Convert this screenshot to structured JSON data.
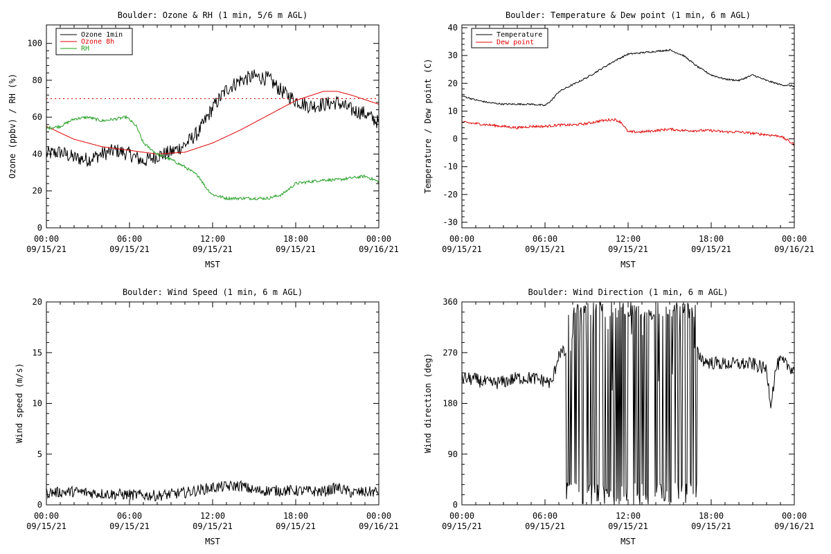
{
  "colors": {
    "black": "#000000",
    "red": "#e00000",
    "green": "#22a022"
  },
  "x_axis": {
    "ticks": [
      "00:00",
      "06:00",
      "12:00",
      "18:00",
      "00:00"
    ],
    "dates": [
      "09/15/21",
      "09/15/21",
      "09/15/21",
      "09/15/21",
      "09/16/21"
    ],
    "label": "MST"
  },
  "chart_data": [
    {
      "type": "line",
      "title": "Boulder: Ozone & RH (1 min, 5/6 m AGL)",
      "ylabel": "Ozone (ppbv) / RH (%)",
      "ylim": [
        0,
        110
      ],
      "yticks": [
        "0",
        "20",
        "40",
        "60",
        "80",
        "100"
      ],
      "x_hours": [
        0,
        24
      ],
      "legend": "top-left",
      "series": [
        {
          "name": "Ozone 1min",
          "color": "black",
          "noise": 4,
          "x": [
            0,
            1,
            2,
            3,
            4,
            5,
            6,
            6.5,
            7,
            8,
            9,
            10,
            11,
            12,
            13,
            14,
            15,
            16,
            17,
            18,
            19,
            20,
            21,
            22,
            23,
            24
          ],
          "y": [
            40,
            41,
            38,
            37,
            40,
            42,
            40,
            38,
            36,
            39,
            41,
            45,
            52,
            65,
            75,
            80,
            82,
            81,
            74,
            69,
            66,
            67,
            68,
            64,
            62,
            57
          ]
        },
        {
          "name": "Ozone 8h",
          "color": "red",
          "noise": 0,
          "x": [
            0,
            2,
            4,
            6,
            8,
            10,
            12,
            14,
            16,
            18,
            20,
            21,
            22,
            24
          ],
          "y": [
            55,
            48,
            44,
            42,
            40,
            41,
            46,
            53,
            61,
            69,
            74,
            74,
            72,
            67
          ]
        },
        {
          "name": "RH",
          "color": "green",
          "noise": 0.8,
          "x": [
            0,
            1,
            2,
            3,
            4,
            5,
            5.8,
            6.5,
            7,
            8,
            9,
            10,
            11,
            11.5,
            12,
            13,
            14,
            15,
            16,
            17,
            18,
            19,
            20,
            21,
            22,
            23,
            24
          ],
          "y": [
            54,
            55,
            59,
            60,
            58,
            59,
            60,
            55,
            46,
            40,
            37,
            33,
            28,
            22,
            18,
            16,
            16,
            16,
            16,
            18,
            24,
            25,
            26,
            26,
            27,
            28,
            25
          ]
        },
        {
          "name": "",
          "color": "red",
          "noise": 0,
          "dotted": true,
          "x": [
            0,
            24
          ],
          "y": [
            70,
            70
          ]
        }
      ]
    },
    {
      "type": "line",
      "title": "Boulder: Temperature & Dew point (1 min, 6 m AGL)",
      "ylabel": "Temperature / Dew point (C)",
      "ylim": [
        -32,
        41
      ],
      "yticks": [
        "-30",
        "-20",
        "-10",
        "0",
        "10",
        "20",
        "30",
        "40"
      ],
      "x_hours": [
        0,
        24
      ],
      "legend": "top-left",
      "series": [
        {
          "name": "Temperature",
          "color": "black",
          "noise": 0.3,
          "x": [
            0,
            1,
            2,
            3,
            4,
            5,
            6,
            6.5,
            7,
            8,
            9,
            10,
            11,
            12,
            13,
            14,
            15,
            16,
            17,
            18,
            19,
            20,
            21,
            22,
            23,
            24
          ],
          "y": [
            15.5,
            14,
            13,
            12.5,
            12.5,
            12.5,
            12,
            14,
            17,
            19.5,
            22,
            25,
            28,
            30.5,
            31,
            31.5,
            32,
            30,
            26,
            23,
            21.5,
            21,
            23,
            21,
            19.5,
            19
          ]
        },
        {
          "name": "Dew point",
          "color": "red",
          "noise": 0.45,
          "x": [
            0,
            1,
            2,
            3,
            4,
            5,
            6,
            7,
            8,
            9,
            10,
            11,
            11.5,
            12,
            13,
            14,
            15,
            16,
            17,
            18,
            19,
            20,
            21,
            22,
            23,
            24
          ],
          "y": [
            6,
            5.5,
            5,
            4.5,
            4,
            4.5,
            4.5,
            5,
            5,
            5.5,
            6.5,
            7,
            6,
            2.5,
            2.5,
            3,
            3.5,
            3,
            3,
            3,
            2.5,
            2.5,
            2,
            1.5,
            1,
            -2
          ]
        }
      ]
    },
    {
      "type": "line",
      "title": "Boulder: Wind Speed (1 min, 6 m AGL)",
      "ylabel": "Wind speed (m/s)",
      "ylim": [
        0,
        20
      ],
      "yticks": [
        "0",
        "5",
        "10",
        "15",
        "20"
      ],
      "x_hours": [
        0,
        24
      ],
      "series": [
        {
          "name": "",
          "color": "black",
          "noise": 0.55,
          "x": [
            0,
            2,
            4,
            6,
            8,
            10,
            12,
            13,
            14,
            15,
            16,
            18,
            20,
            21,
            22,
            24
          ],
          "y": [
            1.2,
            1.3,
            1.1,
            1.0,
            0.9,
            1.2,
            1.7,
            1.8,
            1.9,
            1.4,
            1.4,
            1.4,
            1.3,
            1.7,
            1.2,
            1.3
          ]
        }
      ]
    },
    {
      "type": "line",
      "title": "Boulder: Wind Direction (1 min, 6 m AGL)",
      "ylabel": "Wind direction (deg)",
      "ylim": [
        0,
        360
      ],
      "yticks": [
        "0",
        "90",
        "180",
        "270",
        "360"
      ],
      "x_hours": [
        0,
        24
      ],
      "series": [
        {
          "name": "",
          "color": "black",
          "noise": 12,
          "x": [
            0,
            1,
            2,
            3,
            4,
            5,
            6,
            6.5,
            7,
            17,
            17.5,
            18,
            19,
            20,
            21,
            22,
            22.3,
            22.7,
            23,
            24
          ],
          "y": [
            225,
            222,
            215,
            218,
            225,
            225,
            220,
            215,
            270,
            270,
            255,
            252,
            250,
            250,
            250,
            240,
            180,
            245,
            255,
            240
          ]
        }
      ],
      "unsettled_hours": [
        7.5,
        17
      ]
    }
  ]
}
